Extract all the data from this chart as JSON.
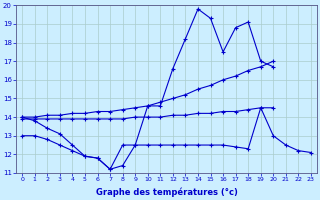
{
  "xlabel": "Graphe des températures (°c)",
  "line_color": "#0000cc",
  "bg_color": "#cceeff",
  "grid_color": "#aacccc",
  "ylim": [
    11,
    20
  ],
  "xlim_min": -0.5,
  "xlim_max": 23.5,
  "line1": {
    "x": [
      0,
      1,
      2,
      3,
      4,
      5,
      6,
      7,
      8,
      9,
      10,
      11,
      12,
      13,
      14,
      15,
      16,
      17,
      18,
      19,
      20,
      21,
      22,
      23
    ],
    "y": [
      14.0,
      13.8,
      13.4,
      13.1,
      12.5,
      11.9,
      11.8,
      11.2,
      11.4,
      12.5,
      14.6,
      14.6,
      16.6,
      18.2,
      19.8,
      19.3,
      17.5,
      18.8,
      19.1,
      17.0,
      16.7,
      null,
      null,
      null
    ]
  },
  "line2": {
    "x": [
      0,
      1,
      2,
      3,
      4,
      5,
      6,
      7,
      8,
      9,
      10,
      11,
      12,
      13,
      14,
      15,
      16,
      17,
      18,
      19,
      20,
      21,
      22,
      23
    ],
    "y": [
      14.0,
      14.0,
      14.1,
      14.1,
      14.2,
      14.2,
      14.3,
      14.3,
      14.4,
      14.5,
      14.6,
      14.8,
      15.0,
      15.2,
      15.5,
      15.7,
      16.0,
      16.2,
      16.5,
      16.7,
      17.0,
      null,
      null,
      null
    ]
  },
  "line3": {
    "x": [
      0,
      1,
      2,
      3,
      4,
      5,
      6,
      7,
      8,
      9,
      10,
      11,
      12,
      13,
      14,
      15,
      16,
      17,
      18,
      19,
      20,
      21,
      22,
      23
    ],
    "y": [
      13.9,
      13.9,
      13.9,
      13.9,
      13.9,
      13.9,
      13.9,
      13.9,
      13.9,
      14.0,
      14.0,
      14.0,
      14.1,
      14.1,
      14.2,
      14.2,
      14.3,
      14.3,
      14.4,
      14.5,
      14.5,
      null,
      null,
      null
    ]
  },
  "line4": {
    "x": [
      0,
      1,
      2,
      3,
      4,
      5,
      6,
      7,
      8,
      9,
      10,
      11,
      12,
      13,
      14,
      15,
      16,
      17,
      18,
      19,
      20,
      21,
      22,
      23
    ],
    "y": [
      13.0,
      13.0,
      12.8,
      12.5,
      12.2,
      11.9,
      11.8,
      11.2,
      12.5,
      12.5,
      12.5,
      12.5,
      12.5,
      12.5,
      12.5,
      12.5,
      12.5,
      12.4,
      12.3,
      14.5,
      13.0,
      12.5,
      12.2,
      12.1
    ]
  }
}
